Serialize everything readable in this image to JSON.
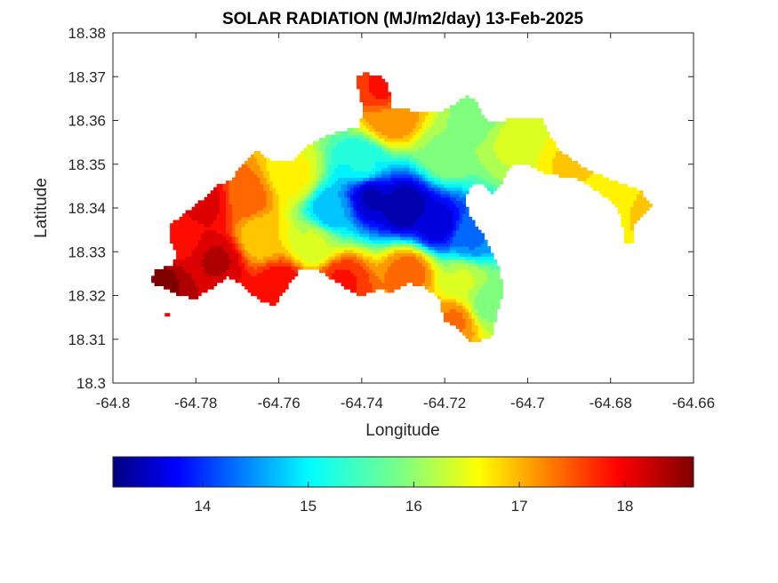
{
  "chart_data": {
    "type": "heatmap",
    "title": "SOLAR RADIATION (MJ/m2/day) 13-Feb-2025",
    "xlabel": "Longitude",
    "ylabel": "Latitude",
    "xlim": [
      -64.8,
      -64.66
    ],
    "ylim": [
      18.3,
      18.38
    ],
    "xticks": [
      "-64.8",
      "-64.78",
      "-64.76",
      "-64.74",
      "-64.72",
      "-64.7",
      "-64.68",
      "-64.66"
    ],
    "yticks": [
      "18.3",
      "18.31",
      "18.32",
      "18.33",
      "18.34",
      "18.35",
      "18.36",
      "18.37",
      "18.38"
    ],
    "colormap": "jet",
    "colorbar": {
      "orientation": "horizontal",
      "range": [
        13.15,
        18.65
      ],
      "ticks": [
        "14",
        "15",
        "16",
        "17",
        "18"
      ]
    },
    "grid": false,
    "field_samples": [
      {
        "lon": -64.79,
        "lat": 18.323,
        "value": 18.6
      },
      {
        "lon": -64.785,
        "lat": 18.333,
        "value": 17.9
      },
      {
        "lon": -64.778,
        "lat": 18.341,
        "value": 18.1
      },
      {
        "lon": -64.775,
        "lat": 18.328,
        "value": 18.3
      },
      {
        "lon": -64.768,
        "lat": 18.342,
        "value": 17.4
      },
      {
        "lon": -64.765,
        "lat": 18.333,
        "value": 16.8
      },
      {
        "lon": -64.76,
        "lat": 18.322,
        "value": 18.0
      },
      {
        "lon": -64.757,
        "lat": 18.347,
        "value": 16.6
      },
      {
        "lon": -64.752,
        "lat": 18.332,
        "value": 16.3
      },
      {
        "lon": -64.748,
        "lat": 18.339,
        "value": 14.8
      },
      {
        "lon": -64.745,
        "lat": 18.323,
        "value": 17.8
      },
      {
        "lon": -64.74,
        "lat": 18.35,
        "value": 15.3
      },
      {
        "lon": -64.738,
        "lat": 18.342,
        "value": 13.5
      },
      {
        "lon": -64.735,
        "lat": 18.367,
        "value": 17.8
      },
      {
        "lon": -64.733,
        "lat": 18.36,
        "value": 17.2
      },
      {
        "lon": -64.73,
        "lat": 18.34,
        "value": 13.3
      },
      {
        "lon": -64.729,
        "lat": 18.325,
        "value": 17.4
      },
      {
        "lon": -64.722,
        "lat": 18.336,
        "value": 13.6
      },
      {
        "lon": -64.72,
        "lat": 18.352,
        "value": 16.0
      },
      {
        "lon": -64.718,
        "lat": 18.314,
        "value": 17.3
      },
      {
        "lon": -64.716,
        "lat": 18.323,
        "value": 16.3
      },
      {
        "lon": -64.714,
        "lat": 18.333,
        "value": 14.5
      },
      {
        "lon": -64.712,
        "lat": 18.36,
        "value": 15.9
      },
      {
        "lon": -64.71,
        "lat": 18.318,
        "value": 15.9
      },
      {
        "lon": -64.705,
        "lat": 18.355,
        "value": 16.3
      },
      {
        "lon": -64.7,
        "lat": 18.358,
        "value": 16.5
      },
      {
        "lon": -64.69,
        "lat": 18.35,
        "value": 16.8
      },
      {
        "lon": -64.678,
        "lat": 18.343,
        "value": 16.7
      },
      {
        "lon": -64.672,
        "lat": 18.34,
        "value": 16.8
      }
    ]
  }
}
